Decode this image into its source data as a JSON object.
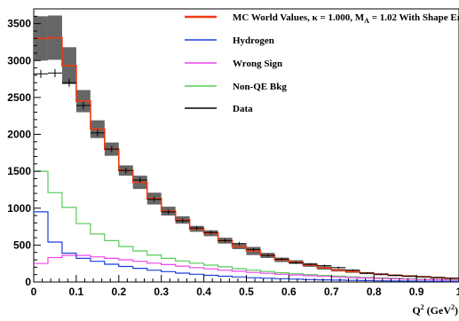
{
  "chart_data": {
    "type": "line",
    "title": "",
    "xlabel": "Q²",
    "xlabel_unit": "(GeV²)",
    "ylabel": "",
    "xlim": [
      0,
      1.0
    ],
    "ylim": [
      0,
      3700
    ],
    "x_ticks": [
      0,
      0.1,
      0.2,
      0.3,
      0.4,
      0.5,
      0.6,
      0.7,
      0.8,
      0.9,
      1.0
    ],
    "x_tick_labels": [
      "0",
      "0.1",
      "0.2",
      "0.3",
      "0.4",
      "0.5",
      "0.6",
      "0.7",
      "0.8",
      "0.9",
      "1"
    ],
    "y_ticks": [
      0,
      500,
      1000,
      1500,
      2000,
      2500,
      3000,
      3500
    ],
    "y_tick_labels": [
      "0",
      "500",
      "1000",
      "1500",
      "2000",
      "2500",
      "3000",
      "3500"
    ],
    "grid": false,
    "legend_position": "top-right",
    "bin_edges": [
      0,
      0.0333,
      0.0667,
      0.1,
      0.1333,
      0.1667,
      0.2,
      0.2333,
      0.2667,
      0.3,
      0.3333,
      0.3667,
      0.4,
      0.4333,
      0.4667,
      0.5,
      0.5333,
      0.5667,
      0.6,
      0.6333,
      0.6667,
      0.7,
      0.7333,
      0.7667,
      0.8,
      0.8333,
      0.8667,
      0.9,
      0.9333,
      0.9667,
      1.0
    ],
    "series": [
      {
        "name": "MC World Values, κ = 1.000, M_A = 1.02 With Shape Error",
        "legend_main": "MC World Values, κ = 1.000, M",
        "legend_sub": "A",
        "legend_tail": " = 1.02 With Shape Error",
        "color": "#ee3a12",
        "style": "step",
        "values": [
          3300,
          3310,
          2930,
          2450,
          2070,
          1800,
          1510,
          1350,
          1130,
          960,
          840,
          720,
          660,
          560,
          480,
          420,
          360,
          300,
          270,
          230,
          190,
          160,
          140,
          120,
          105,
          90,
          80,
          70,
          60,
          50
        ],
        "band": [
          300,
          300,
          250,
          150,
          120,
          90,
          70,
          90,
          80,
          60,
          50,
          40,
          40,
          40,
          35,
          55,
          35,
          30,
          25,
          25,
          22,
          18,
          16,
          14,
          12,
          12,
          11,
          10,
          9,
          8
        ]
      },
      {
        "name": "Hydrogen",
        "color": "#1c3ce0",
        "style": "step",
        "values": [
          950,
          540,
          390,
          320,
          280,
          240,
          210,
          185,
          160,
          140,
          120,
          105,
          90,
          78,
          68,
          58,
          50,
          44,
          38,
          33,
          29,
          25,
          22,
          19,
          16,
          14,
          12,
          11,
          10,
          9
        ]
      },
      {
        "name": "Wrong Sign",
        "color": "#ee44ee",
        "style": "step",
        "values": [
          250,
          330,
          360,
          360,
          340,
          320,
          300,
          280,
          255,
          235,
          215,
          195,
          178,
          160,
          145,
          130,
          118,
          105,
          95,
          85,
          76,
          68,
          60,
          54,
          48,
          43,
          38,
          34,
          30,
          27
        ]
      },
      {
        "name": "Non-QE Bkg",
        "color": "#55cc55",
        "style": "step",
        "values": [
          1500,
          1210,
          1010,
          790,
          650,
          560,
          480,
          420,
          365,
          320,
          285,
          255,
          228,
          205,
          180,
          160,
          142,
          125,
          112,
          100,
          88,
          78,
          70,
          62,
          55,
          49,
          44,
          39,
          35,
          30
        ]
      },
      {
        "name": "Data",
        "color": "#000000",
        "style": "points",
        "values": [
          2820,
          2830,
          2700,
          2390,
          2020,
          1800,
          1510,
          1380,
          1120,
          950,
          830,
          730,
          670,
          560,
          520,
          440,
          360,
          310,
          260,
          240,
          220,
          195,
          160,
          120,
          105,
          90,
          80,
          70,
          60,
          50
        ],
        "errors": [
          55,
          55,
          55,
          50,
          45,
          45,
          40,
          35,
          33,
          30,
          28,
          27,
          26,
          24,
          23,
          21,
          19,
          18,
          16,
          15,
          15,
          14,
          13,
          11,
          10,
          10,
          9,
          8,
          8,
          7
        ]
      }
    ]
  }
}
